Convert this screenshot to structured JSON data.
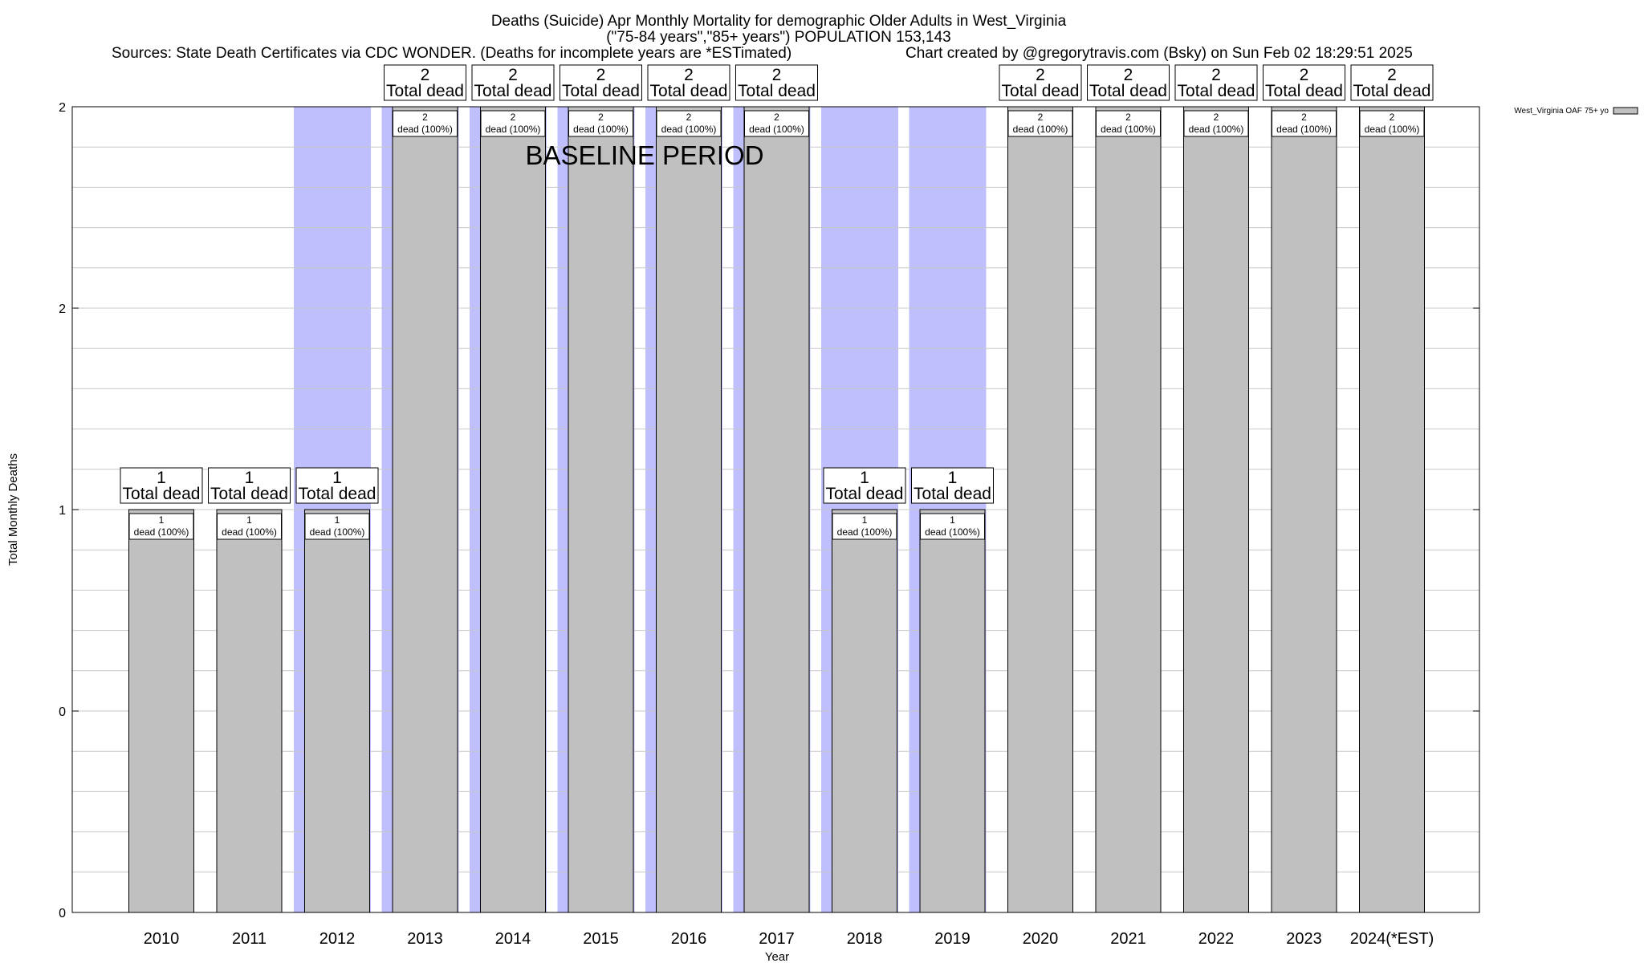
{
  "title": "Deaths (Suicide) Apr Monthly Mortality for demographic Older Adults in West_Virginia",
  "subtitle": "(\"75-84 years\",\"85+ years\") POPULATION 153,143",
  "sources": "Sources: State Death Certificates via CDC WONDER. (Deaths for incomplete years are *ESTimated)",
  "credit": "Chart created by @gregorytravis.com (Bsky) on Sun Feb 02 18:29:51 2025",
  "baseline_label": "BASELINE PERIOD",
  "total_suffix": "Total dead",
  "colors": {
    "bar": "#c0c0c0",
    "baseline": "#bfbffd",
    "grid": "#c8c8c8"
  },
  "chart_data": {
    "type": "bar",
    "categories": [
      "2010",
      "2011",
      "2012",
      "2013",
      "2014",
      "2015",
      "2016",
      "2017",
      "2018",
      "2019",
      "2020",
      "2021",
      "2022",
      "2023",
      "2024(*EST)"
    ],
    "series": [
      {
        "name": "West_Virginia OAF 75+ yo",
        "values": [
          1,
          1,
          1,
          2,
          2,
          2,
          2,
          2,
          1,
          1,
          2,
          2,
          2,
          2,
          2
        ],
        "labels": [
          "dead (100%)",
          "dead (100%)",
          "dead (100%)",
          "dead (100%)",
          "dead (100%)",
          "dead (100%)",
          "dead (100%)",
          "dead (100%)",
          "dead (100%)",
          "dead (100%)",
          "dead (100%)",
          "dead (100%)",
          "dead (100%)",
          "dead (100%)",
          "dead (100%)"
        ]
      }
    ],
    "baseline_period": [
      "2012",
      "2019"
    ],
    "xlabel": "Year",
    "ylabel": "Total Monthly Deaths",
    "ylim": [
      0,
      2
    ],
    "ytick_values": [
      0,
      0.5,
      1,
      1.5,
      2
    ],
    "ytick_labels": [
      "0",
      "0",
      "1",
      "2",
      "2"
    ],
    "grid": true,
    "legend_position": "top-right"
  }
}
